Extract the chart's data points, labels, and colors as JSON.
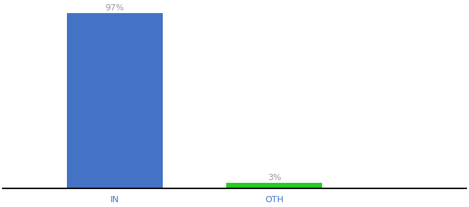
{
  "categories": [
    "IN",
    "OTH"
  ],
  "values": [
    97,
    3
  ],
  "bar_colors": [
    "#4472c4",
    "#22cc22"
  ],
  "label_texts": [
    "97%",
    "3%"
  ],
  "label_color": "#999999",
  "ylim": [
    0,
    100
  ],
  "background_color": "#ffffff",
  "bar_width": 0.6,
  "label_fontsize": 9,
  "tick_fontsize": 9,
  "tick_color": "#4472c4",
  "x_positions": [
    1,
    2
  ],
  "xlim": [
    0.3,
    3.2
  ]
}
